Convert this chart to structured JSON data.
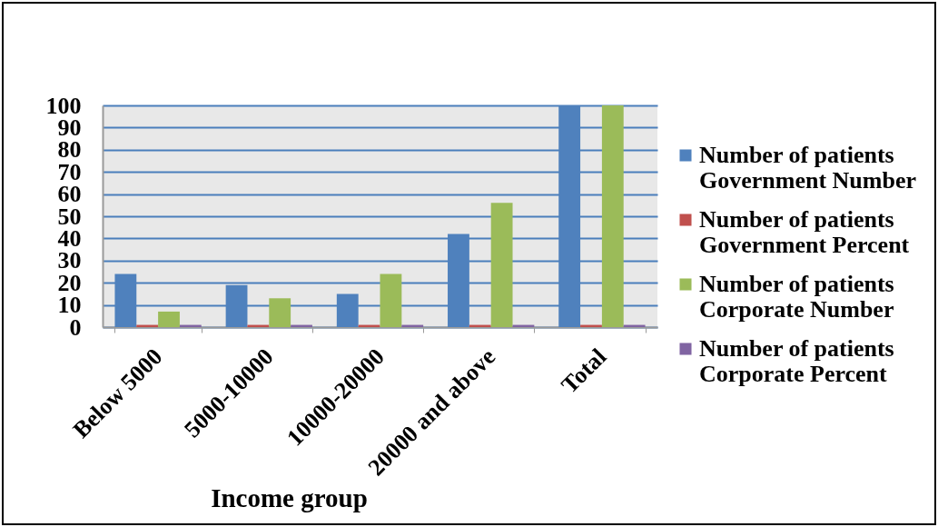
{
  "chart_data": {
    "type": "bar",
    "xlabel": "Income group",
    "categories": [
      "Below 5000",
      "5000-10000",
      "10000-20000",
      "20000 and above",
      "Total"
    ],
    "series": [
      {
        "name": "Number of patients Government Number",
        "color": "#4f81bd",
        "values": [
          24,
          19,
          15,
          42,
          100
        ]
      },
      {
        "name": "Number of patients Government Percent",
        "color": "#c0504d",
        "values": [
          1,
          1,
          1,
          1,
          1
        ]
      },
      {
        "name": "Number of patients Corporate Number",
        "color": "#9bbb59",
        "values": [
          7,
          13,
          24,
          56,
          100
        ]
      },
      {
        "name": "Number of patients Corporate Percent",
        "color": "#8064a2",
        "values": [
          1,
          1,
          1,
          1,
          1
        ]
      }
    ],
    "ylim": [
      0,
      100
    ],
    "yticks": [
      0,
      10,
      20,
      30,
      40,
      50,
      60,
      70,
      80,
      90,
      100
    ],
    "grid": "y",
    "legend": "right"
  }
}
